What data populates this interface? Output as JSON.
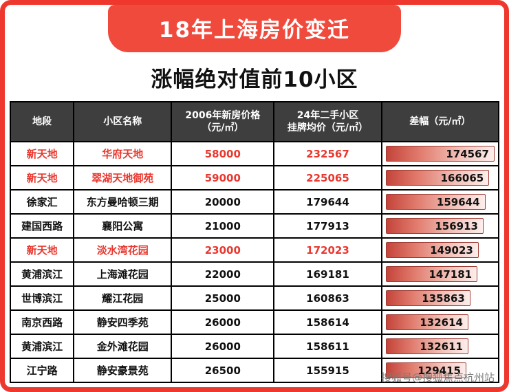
{
  "banner": {
    "title": "18年上海房价变迁"
  },
  "subtitle": "涨幅绝对值前10小区",
  "chart_data": {
    "type": "table",
    "title": "涨幅绝对值前10小区",
    "headers": {
      "district": "地段",
      "community": "小区名称",
      "price2006": "2006年新房价格\n（元/㎡）",
      "price2024": "24年二手小区\n挂牌均价（元/㎡）",
      "diff": "差幅（元/㎡）"
    },
    "rows": [
      {
        "district": "新天地",
        "community": "华府天地",
        "price2006": "58000",
        "price2024": "232567",
        "diff": "174567",
        "highlight": true
      },
      {
        "district": "新天地",
        "community": "翠湖天地御苑",
        "price2006": "59000",
        "price2024": "225065",
        "diff": "166065",
        "highlight": true
      },
      {
        "district": "徐家汇",
        "community": "东方曼哈顿三期",
        "price2006": "20000",
        "price2024": "179644",
        "diff": "159644",
        "highlight": false
      },
      {
        "district": "建国西路",
        "community": "襄阳公寓",
        "price2006": "21000",
        "price2024": "177913",
        "diff": "156913",
        "highlight": false
      },
      {
        "district": "新天地",
        "community": "淡水湾花园",
        "price2006": "23000",
        "price2024": "172023",
        "diff": "149023",
        "highlight": true
      },
      {
        "district": "黄浦滨江",
        "community": "上海滩花园",
        "price2006": "22000",
        "price2024": "169181",
        "diff": "147181",
        "highlight": false
      },
      {
        "district": "世博滨江",
        "community": "耀江花园",
        "price2006": "25000",
        "price2024": "160863",
        "diff": "135863",
        "highlight": false
      },
      {
        "district": "南京西路",
        "community": "静安四季苑",
        "price2006": "26000",
        "price2024": "158614",
        "diff": "132614",
        "highlight": false
      },
      {
        "district": "黄浦滨江",
        "community": "金外滩花园",
        "price2006": "26000",
        "price2024": "158611",
        "diff": "132611",
        "highlight": false
      },
      {
        "district": "江宁路",
        "community": "静安豪景苑",
        "price2006": "26500",
        "price2024": "155915",
        "diff": "129415",
        "highlight": false
      }
    ],
    "bar_value_max": 174567,
    "colors": {
      "border_red": "#ee382e",
      "banner_red": "#f04a3d",
      "highlight_text": "#e8382f",
      "header_bg": "#3e3e3e",
      "bar_dark": "#c4443a",
      "bar_light": "#fceeec"
    }
  },
  "watermark": "搜狐号@搜狐焦点杭州站"
}
